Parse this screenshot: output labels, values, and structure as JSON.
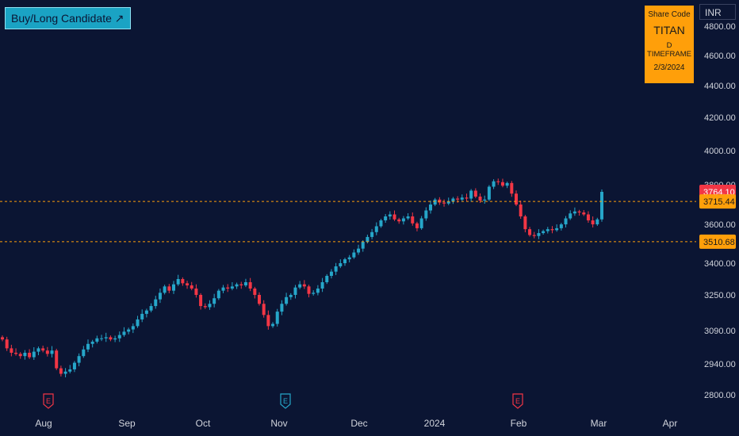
{
  "header": {
    "signal_label": "Buy/Long Candidate",
    "signal_icon": "arrow-up-right-icon",
    "currency_label": "INR"
  },
  "info_box": {
    "title": "Share Code",
    "symbol": "TITAN",
    "timeframe": "D TIMEFRAME",
    "date": "2/3/2024"
  },
  "colors": {
    "background": "#0b1533",
    "up": "#26a6c9",
    "down": "#f23645",
    "accent": "#ff9f0a",
    "last_price": "#f23645"
  },
  "chart_data": {
    "type": "candlestick",
    "title": "",
    "xlabel": "",
    "ylabel": "",
    "y_ticks": [
      2800,
      2940,
      3090,
      3250,
      3400,
      3600,
      3800,
      4000,
      4200,
      4400,
      4600,
      4800
    ],
    "y_tick_labels": [
      "2800.00",
      "2940.00",
      "3090.00",
      "3250.00",
      "3400.00",
      "3600.00",
      "3800.00",
      "4000.00",
      "4200.00",
      "4400.00",
      "4600.00",
      "4800.00"
    ],
    "x_tick_labels": [
      "Aug",
      "Sep",
      "Oct",
      "Nov",
      "Dec",
      "2024",
      "Feb",
      "Mar",
      "Apr"
    ],
    "horizontal_lines": [
      {
        "value": 3715.44,
        "label": "3715.44"
      },
      {
        "value": 3510.68,
        "label": "3510.68"
      }
    ],
    "last_price": {
      "value": 3764.1,
      "label": "3764.10"
    },
    "earnings_markers": [
      "Aug",
      "Nov",
      "Feb"
    ],
    "candles_close": [
      3050,
      3010,
      2990,
      2985,
      2975,
      2990,
      2970,
      2995,
      3010,
      3000,
      2985,
      3000,
      2920,
      2895,
      2905,
      2915,
      2945,
      2975,
      3005,
      3030,
      3040,
      3055,
      3055,
      3060,
      3050,
      3055,
      3070,
      3085,
      3095,
      3110,
      3140,
      3165,
      3180,
      3200,
      3230,
      3260,
      3290,
      3270,
      3300,
      3325,
      3305,
      3295,
      3280,
      3250,
      3200,
      3195,
      3210,
      3235,
      3270,
      3285,
      3280,
      3290,
      3300,
      3295,
      3310,
      3280,
      3250,
      3210,
      3160,
      3110,
      3120,
      3175,
      3210,
      3240,
      3250,
      3285,
      3300,
      3290,
      3255,
      3260,
      3280,
      3310,
      3340,
      3360,
      3385,
      3400,
      3420,
      3430,
      3455,
      3475,
      3510,
      3535,
      3560,
      3590,
      3620,
      3640,
      3650,
      3625,
      3615,
      3630,
      3640,
      3605,
      3580,
      3630,
      3670,
      3700,
      3725,
      3710,
      3705,
      3715,
      3730,
      3725,
      3735,
      3730,
      3770,
      3740,
      3720,
      3725,
      3790,
      3820,
      3815,
      3795,
      3810,
      3755,
      3700,
      3640,
      3575,
      3545,
      3540,
      3555,
      3565,
      3575,
      3570,
      3580,
      3600,
      3630,
      3655,
      3665,
      3660,
      3650,
      3620,
      3600,
      3625,
      3764
    ]
  }
}
